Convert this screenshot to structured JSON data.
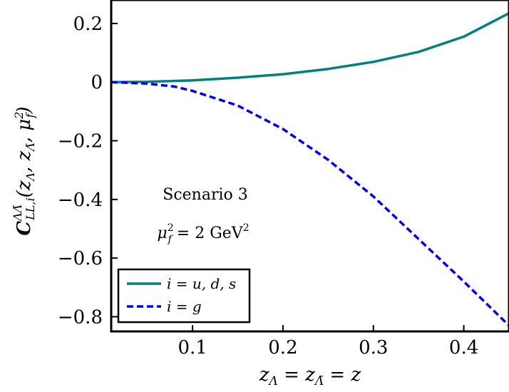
{
  "chart_data": {
    "type": "line",
    "xlabel": "z_Λ = z_Λ̄ = z",
    "ylabel": "C^{ΛΛ̄}_{LL,i}(z_Λ, z_Λ̄, μ_f²)",
    "xlim": [
      0.01,
      0.45
    ],
    "ylim": [
      -0.85,
      0.28
    ],
    "xticks": [
      0.1,
      0.2,
      0.3,
      0.4
    ],
    "xtick_labels": [
      "0.1",
      "0.2",
      "0.3",
      "0.4"
    ],
    "yticks": [
      0.2,
      0,
      -0.2,
      -0.4,
      -0.6,
      -0.8
    ],
    "ytick_labels": [
      "0.2",
      "0",
      "−0.2",
      "−0.4",
      "−0.6",
      "−0.8"
    ],
    "grid": false,
    "legend_position": "bottom-left",
    "annotations": [
      "Scenario 3",
      "μf² = 2 GeV²"
    ],
    "series": [
      {
        "name": "i = u, d, s",
        "color": "#008080",
        "style": "solid",
        "x": [
          0.01,
          0.05,
          0.1,
          0.15,
          0.2,
          0.25,
          0.3,
          0.35,
          0.4,
          0.45
        ],
        "y": [
          0.0,
          0.001,
          0.006,
          0.015,
          0.027,
          0.045,
          0.069,
          0.103,
          0.155,
          0.235
        ]
      },
      {
        "name": "i = g",
        "color": "#0000ee",
        "style": "dashed",
        "x": [
          0.01,
          0.05,
          0.08,
          0.1,
          0.15,
          0.2,
          0.25,
          0.3,
          0.35,
          0.4,
          0.45
        ],
        "y": [
          0.0,
          -0.005,
          -0.015,
          -0.03,
          -0.08,
          -0.16,
          -0.265,
          -0.39,
          -0.535,
          -0.68,
          -0.83
        ]
      }
    ]
  }
}
